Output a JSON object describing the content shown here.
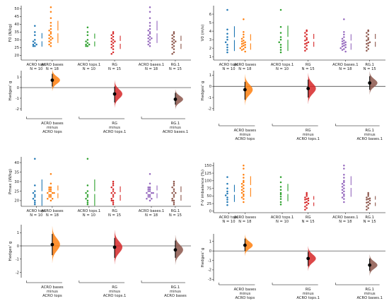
{
  "colors": {
    "ACRO tops": "#1f77b4",
    "ACRO bases": "#ff7f0e",
    "ACRO tops.1": "#2ca02c",
    "RG": "#d62728",
    "ACRO bases.1": "#9467bd",
    "RG.1": "#8c564b"
  },
  "chart_data": [
    {
      "type": "scatter",
      "panel": "F0",
      "ylabel": "F0 (N/kg)",
      "ylim": [
        17,
        52
      ],
      "yticks": [
        20,
        25,
        30,
        35,
        40,
        45,
        50
      ],
      "groups": [
        {
          "name": "ACRO tops",
          "n_label": "N = 10",
          "values": [
            39,
            35,
            33,
            30,
            29,
            28,
            27,
            27,
            26,
            26
          ]
        },
        {
          "name": "ACRO bases",
          "n_label": "N = 18",
          "values": [
            51,
            48,
            44,
            41,
            39,
            37,
            36,
            35,
            34,
            33,
            32,
            31,
            31,
            30,
            29,
            28,
            27,
            26
          ]
        },
        {
          "name": "ACRO tops.1",
          "n_label": "N = 10",
          "values": [
            38,
            35,
            33,
            30,
            29,
            28,
            27,
            27,
            26,
            26
          ]
        },
        {
          "name": "RG",
          "n_label": "N = 15",
          "values": [
            35,
            34,
            33,
            32,
            31,
            30,
            29,
            29,
            28,
            27,
            26,
            25,
            24,
            22,
            21
          ]
        },
        {
          "name": "ACRO bases.1",
          "n_label": "N = 18",
          "values": [
            51,
            48,
            44,
            41,
            39,
            37,
            36,
            35,
            34,
            33,
            32,
            31,
            31,
            30,
            29,
            28,
            27,
            26
          ]
        },
        {
          "name": "RG.1",
          "n_label": "N = 15",
          "values": [
            35,
            34,
            33,
            32,
            31,
            30,
            29,
            29,
            28,
            27,
            26,
            25,
            24,
            22,
            21
          ]
        }
      ],
      "effects": {
        "ylabel": "Hedges' g",
        "ylim": [
          -2.2,
          1.6
        ],
        "yticks": [
          -2,
          -1,
          0,
          1
        ],
        "items": [
          {
            "group": "ACRO bases",
            "g": 0.7,
            "ci": [
              0.1,
              1.3
            ],
            "label": [
              "ACRO bases",
              "minus",
              "ACRO tops"
            ]
          },
          {
            "group": "RG",
            "g": -0.6,
            "ci": [
              -1.4,
              0.1
            ],
            "label": [
              "RG",
              "minus",
              "ACRO tops.1"
            ]
          },
          {
            "group": "RG.1",
            "g": -1.1,
            "ci": [
              -1.6,
              -0.5
            ],
            "label": [
              "RG.1",
              "minus",
              "ACRO bases.1"
            ]
          }
        ]
      }
    },
    {
      "type": "scatter",
      "panel": "V0",
      "ylabel": "V0 (m/s)",
      "ylim": [
        0.6,
        7
      ],
      "yticks": [
        1,
        2,
        3,
        4,
        5,
        6
      ],
      "groups": [
        {
          "name": "ACRO tops",
          "n_label": "N = 10",
          "values": [
            6.5,
            4.2,
            3.7,
            3.3,
            3.0,
            2.7,
            2.4,
            2.1,
            1.8,
            1.5
          ]
        },
        {
          "name": "ACRO bases",
          "n_label": "N = 18",
          "values": [
            5.4,
            3.9,
            3.6,
            3.3,
            3.1,
            2.9,
            2.8,
            2.7,
            2.6,
            2.5,
            2.4,
            2.3,
            2.2,
            2.1,
            2.0,
            1.9,
            1.8,
            1.6
          ]
        },
        {
          "name": "ACRO tops.1",
          "n_label": "N = 10",
          "values": [
            6.5,
            4.5,
            3.8,
            3.3,
            3.0,
            2.7,
            2.4,
            2.1,
            1.8,
            1.5
          ]
        },
        {
          "name": "RG",
          "n_label": "N = 15",
          "values": [
            4.1,
            4.0,
            3.8,
            3.6,
            3.4,
            3.2,
            3.0,
            2.9,
            2.7,
            2.6,
            2.5,
            2.3,
            2.1,
            1.9,
            1.7
          ]
        },
        {
          "name": "ACRO bases.1",
          "n_label": "N = 18",
          "values": [
            5.4,
            3.9,
            3.6,
            3.3,
            3.1,
            2.9,
            2.8,
            2.7,
            2.6,
            2.5,
            2.4,
            2.3,
            2.2,
            2.1,
            2.0,
            1.9,
            1.8,
            1.6
          ]
        },
        {
          "name": "RG.1",
          "n_label": "N = 15",
          "values": [
            4.1,
            4.0,
            3.8,
            3.6,
            3.4,
            3.2,
            3.0,
            2.9,
            2.7,
            2.6,
            2.5,
            2.3,
            2.1,
            1.9,
            1.7
          ]
        }
      ],
      "effects": {
        "ylabel": "Hedges' g",
        "ylim": [
          -2.2,
          1.4
        ],
        "yticks": [
          -2,
          -1,
          0,
          1
        ],
        "items": [
          {
            "group": "ACRO bases",
            "g": -0.3,
            "ci": [
              -1.2,
              0.4
            ],
            "label": [
              "ACRO bases",
              "minus",
              "ACRO tops"
            ]
          },
          {
            "group": "RG",
            "g": -0.2,
            "ci": [
              -1.0,
              0.6
            ],
            "label": [
              "RG",
              "minus",
              "ACRO tops.1"
            ]
          },
          {
            "group": "RG.1",
            "g": 0.3,
            "ci": [
              -0.3,
              0.9
            ],
            "label": [
              "RG.1",
              "minus",
              "ACRO bases.1"
            ]
          }
        ]
      }
    },
    {
      "type": "scatter",
      "panel": "Pmax",
      "ylabel": "Pmax (W/kg)",
      "ylim": [
        17,
        43
      ],
      "yticks": [
        20,
        25,
        30,
        35,
        40
      ],
      "groups": [
        {
          "name": "ACRO tops",
          "n_label": "N = 10",
          "values": [
            42,
            28,
            25,
            24,
            23,
            22,
            21,
            20,
            19,
            18
          ]
        },
        {
          "name": "ACRO bases",
          "n_label": "N = 18",
          "values": [
            34,
            29,
            27,
            27,
            26,
            26,
            25,
            25,
            24,
            24,
            24,
            23,
            23,
            22,
            22,
            21,
            21,
            20
          ]
        },
        {
          "name": "ACRO tops.1",
          "n_label": "N = 10",
          "values": [
            42,
            28,
            25,
            24,
            23,
            22,
            21,
            20,
            19,
            18
          ]
        },
        {
          "name": "RG",
          "n_label": "N = 15",
          "values": [
            30,
            29,
            28,
            27,
            26,
            25,
            24,
            24,
            23,
            22,
            21,
            20,
            20,
            19,
            18
          ]
        },
        {
          "name": "ACRO bases.1",
          "n_label": "N = 18",
          "values": [
            34,
            29,
            27,
            27,
            26,
            26,
            25,
            25,
            24,
            24,
            24,
            23,
            23,
            22,
            22,
            21,
            21,
            20
          ]
        },
        {
          "name": "RG.1",
          "n_label": "N = 15",
          "values": [
            30,
            29,
            28,
            27,
            26,
            25,
            24,
            24,
            23,
            22,
            21,
            20,
            20,
            19,
            18
          ]
        }
      ],
      "effects": {
        "ylabel": "Hedges' g",
        "ylim": [
          -2.4,
          1.6
        ],
        "yticks": [
          -2,
          -1,
          0,
          1
        ],
        "items": [
          {
            "group": "ACRO bases",
            "g": 0.1,
            "ci": [
              -0.7,
              0.9
            ],
            "label": [
              "ACRO bases",
              "minus",
              "ACRO tops"
            ]
          },
          {
            "group": "RG",
            "g": -0.1,
            "ci": [
              -0.9,
              0.6
            ],
            "label": [
              "RG",
              "minus",
              "ACRO tops.1"
            ]
          },
          {
            "group": "RG.1",
            "g": -0.3,
            "ci": [
              -0.9,
              0.4
            ],
            "label": [
              "RG.1",
              "minus",
              "ACRO bases"
            ]
          }
        ]
      }
    },
    {
      "type": "scatter",
      "panel": "FV",
      "ylabel": "F-V imbalance (%)",
      "ylim": [
        -5,
        160
      ],
      "yticks": [
        0,
        25,
        50,
        75,
        100,
        125,
        150
      ],
      "groups": [
        {
          "name": "ACRO tops",
          "n_label": "N = 10",
          "values": [
            112,
            90,
            75,
            65,
            58,
            52,
            45,
            38,
            30,
            20
          ]
        },
        {
          "name": "ACRO bases",
          "n_label": "N = 18",
          "values": [
            150,
            140,
            120,
            110,
            100,
            95,
            90,
            85,
            80,
            75,
            70,
            65,
            60,
            55,
            50,
            45,
            40,
            30
          ]
        },
        {
          "name": "ACRO tops.1",
          "n_label": "N = 10",
          "values": [
            112,
            95,
            80,
            70,
            60,
            55,
            48,
            40,
            30,
            22
          ]
        },
        {
          "name": "RG",
          "n_label": "N = 15",
          "values": [
            60,
            55,
            50,
            45,
            42,
            40,
            38,
            35,
            30,
            28,
            25,
            20,
            15,
            10,
            5
          ]
        },
        {
          "name": "ACRO bases.1",
          "n_label": "N = 18",
          "values": [
            150,
            140,
            120,
            110,
            100,
            95,
            90,
            85,
            80,
            75,
            70,
            65,
            60,
            55,
            50,
            45,
            40,
            30
          ]
        },
        {
          "name": "RG.1",
          "n_label": "N = 15",
          "values": [
            60,
            55,
            50,
            45,
            42,
            40,
            38,
            35,
            30,
            28,
            25,
            20,
            15,
            10,
            5
          ]
        }
      ],
      "effects": {
        "ylabel": "Hedges' g",
        "ylim": [
          -3.2,
          1.8
        ],
        "yticks": [
          -3,
          -2,
          -1,
          0,
          1
        ],
        "items": [
          {
            "group": "ACRO bases",
            "g": 0.6,
            "ci": [
              0.0,
              1.3
            ],
            "label": [
              "ACRO bases",
              "minus",
              "ACRO tops"
            ]
          },
          {
            "group": "RG",
            "g": -0.8,
            "ci": [
              -1.6,
              -0.1
            ],
            "label": [
              "RG",
              "minus",
              "ACRO tops.1"
            ]
          },
          {
            "group": "RG.1",
            "g": -1.5,
            "ci": [
              -2.1,
              -0.8
            ],
            "label": [
              "RG.1",
              "minus",
              "ACRO bases.1"
            ]
          }
        ]
      }
    }
  ]
}
